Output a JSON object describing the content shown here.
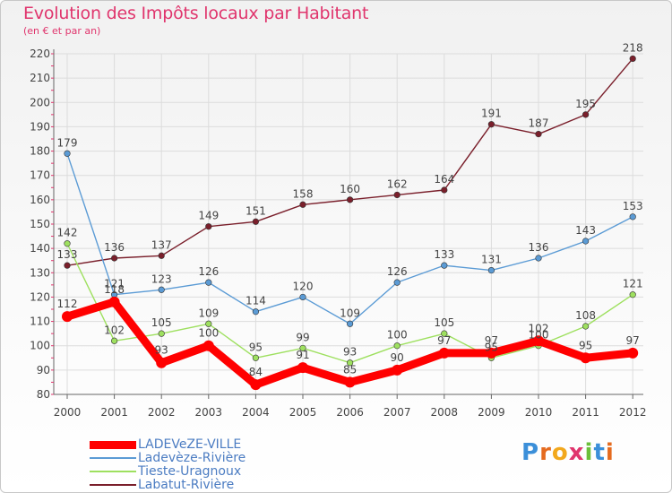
{
  "title": "Evolution des Impôts locaux par Habitant",
  "subtitle": "(en € et par an)",
  "logo": "Proxiti",
  "chart_data": {
    "type": "line",
    "title": "Evolution des Impôts locaux par Habitant",
    "subtitle": "(en € et par an)",
    "xlabel": "",
    "ylabel": "",
    "x": [
      "2000",
      "2001",
      "2002",
      "2003",
      "2004",
      "2005",
      "2006",
      "2007",
      "2008",
      "2009",
      "2010",
      "2011",
      "2012"
    ],
    "ylim": [
      80,
      220
    ],
    "yticks": [
      80,
      90,
      100,
      110,
      120,
      130,
      140,
      150,
      160,
      170,
      180,
      190,
      200,
      210,
      220
    ],
    "grid": true,
    "series": [
      {
        "name": "LADEVeZE-VILLE",
        "color": "#ff0000",
        "values": [
          112,
          118,
          93,
          100,
          84,
          91,
          85,
          90,
          97,
          97,
          102,
          95,
          97
        ],
        "labels": [
          "112",
          "118",
          "93",
          "100",
          "84",
          "91",
          "85",
          "90",
          "97",
          "97",
          "102",
          "95",
          "97"
        ]
      },
      {
        "name": "Ladevèze-Rivière",
        "color": "#5b9bd5",
        "values": [
          179,
          121,
          123,
          126,
          114,
          120,
          109,
          126,
          133,
          131,
          136,
          143,
          153
        ],
        "labels": [
          "179",
          "121",
          "123",
          "126",
          "114",
          "120",
          "109",
          "126",
          "133",
          "131",
          "136",
          "143",
          "153"
        ]
      },
      {
        "name": "Tieste-Uragnoux",
        "color": "#9ee05f",
        "values": [
          142,
          102,
          105,
          109,
          95,
          99,
          93,
          100,
          105,
          95,
          100,
          108,
          121
        ],
        "labels": [
          "142",
          "102",
          "105",
          "109",
          "95",
          "99",
          "93",
          "100",
          "105",
          "95",
          "100",
          "108",
          "121"
        ]
      },
      {
        "name": "Labatut-Rivière",
        "color": "#7a1f2b",
        "values": [
          133,
          136,
          137,
          149,
          151,
          158,
          160,
          162,
          164,
          191,
          187,
          195,
          218
        ],
        "labels": [
          "133",
          "136",
          "137",
          "149",
          "151",
          "158",
          "160",
          "162",
          "164",
          "191",
          "187",
          "195",
          "218"
        ]
      }
    ]
  }
}
